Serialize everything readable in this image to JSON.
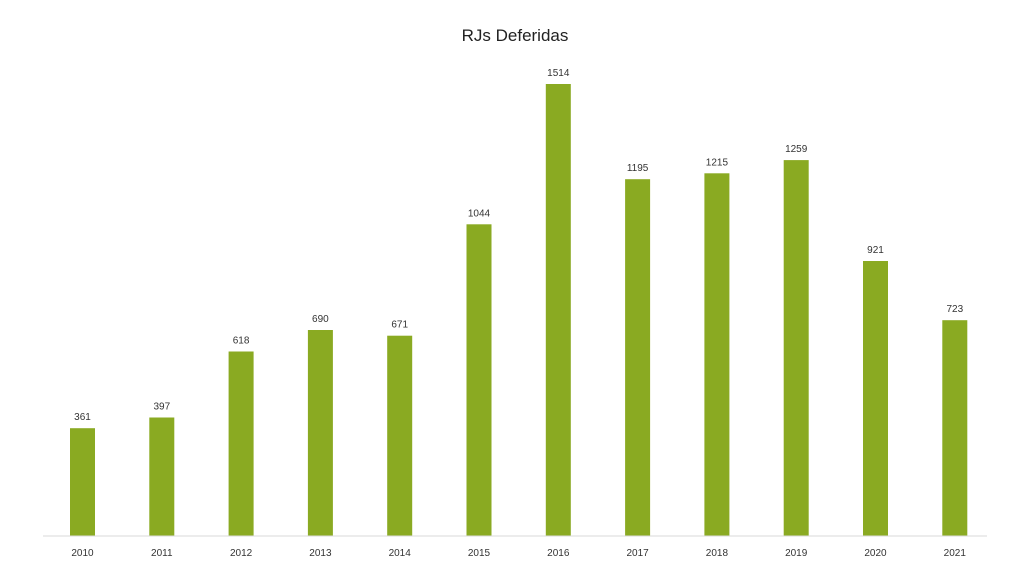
{
  "chart_data": {
    "type": "bar",
    "title": "RJs Deferidas",
    "xlabel": "",
    "ylabel": "",
    "categories": [
      "2010",
      "2011",
      "2012",
      "2013",
      "2014",
      "2015",
      "2016",
      "2017",
      "2018",
      "2019",
      "2020",
      "2021"
    ],
    "values": [
      361,
      397,
      618,
      690,
      671,
      1044,
      1514,
      1195,
      1215,
      1259,
      921,
      723
    ],
    "value_labels": [
      "361",
      "397",
      "618",
      "690",
      "671",
      "1044",
      "1514",
      "1195",
      "1215",
      "1259",
      "921",
      "723"
    ],
    "ylim": [
      0,
      1514
    ],
    "grid": false,
    "legend": "none",
    "bar_color": "#8aaa22",
    "axis_color": "#d9d9d9"
  }
}
